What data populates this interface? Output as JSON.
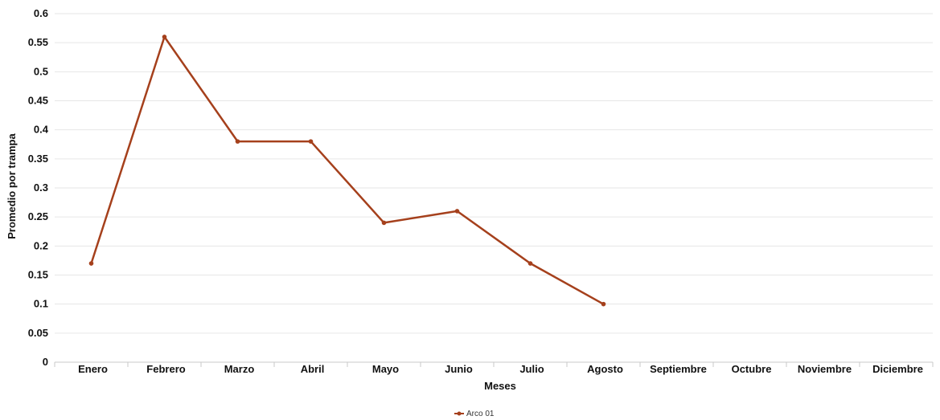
{
  "chart_data": {
    "type": "line",
    "title": "",
    "xlabel": "Meses",
    "ylabel": "Promedio por trampa",
    "categories": [
      "Enero",
      "Febrero",
      "Marzo",
      "Abril",
      "Mayo",
      "Junio",
      "Julio",
      "Agosto",
      "Septiembre",
      "Octubre",
      "Noviembre",
      "Diciembre"
    ],
    "y_ticks": [
      "0",
      "0.05",
      "0.1",
      "0.15",
      "0.2",
      "0.25",
      "0.3",
      "0.35",
      "0.4",
      "0.45",
      "0.5",
      "0.55",
      "0.6"
    ],
    "ylim": [
      0,
      0.6
    ],
    "grid": true,
    "legend_position": "bottom-center",
    "series": [
      {
        "name": "Arco 01",
        "color": "#a5401c",
        "values": [
          0.17,
          0.56,
          0.38,
          0.38,
          0.24,
          0.26,
          0.17,
          0.1,
          null,
          null,
          null,
          null
        ]
      }
    ]
  }
}
